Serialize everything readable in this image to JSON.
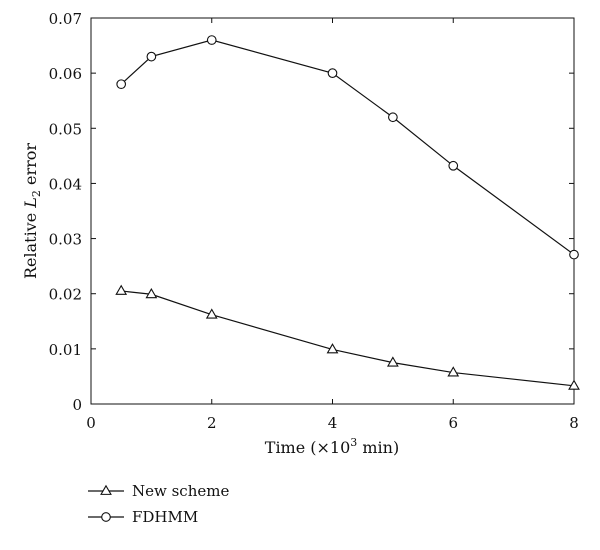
{
  "chart_data": {
    "type": "line",
    "title": "",
    "xlabel": {
      "prefix": "Time (×10",
      "sup": "3",
      "suffix": " min)"
    },
    "ylabel": {
      "prefix": "Relative ",
      "var": "L",
      "sub": "2",
      "suffix": " error"
    },
    "xlim": [
      0,
      8
    ],
    "ylim": [
      0,
      0.07
    ],
    "xticks": [
      0,
      2,
      4,
      6,
      8
    ],
    "xtick_labels": [
      "0",
      "2",
      "4",
      "6",
      "8"
    ],
    "yticks": [
      0,
      0.01,
      0.02,
      0.03,
      0.04,
      0.05,
      0.06,
      0.07
    ],
    "ytick_labels": [
      "0",
      "0.01",
      "0.02",
      "0.03",
      "0.04",
      "0.05",
      "0.06",
      "0.07"
    ],
    "grid": false,
    "legend_position": "below",
    "series": [
      {
        "name": "New scheme",
        "marker": "triangle",
        "x": [
          0.5,
          1,
          2,
          4,
          5,
          6,
          8
        ],
        "y": [
          0.0205,
          0.0199,
          0.0162,
          0.0099,
          0.0075,
          0.0057,
          0.0033
        ]
      },
      {
        "name": "FDHMM",
        "marker": "circle",
        "x": [
          0.5,
          1,
          2,
          4,
          5,
          6,
          8
        ],
        "y": [
          0.058,
          0.063,
          0.066,
          0.06,
          0.052,
          0.0432,
          0.0271
        ]
      }
    ],
    "colors": {
      "line": "#111111",
      "text": "#111111",
      "background": "#ffffff"
    }
  }
}
